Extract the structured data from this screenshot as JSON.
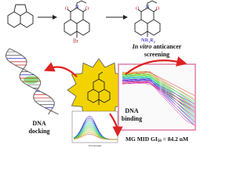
{
  "labels": {
    "in_vitro": "In vitro",
    "anticancer": "anticancer",
    "screening": "screening",
    "dna_docking_1": "DNA",
    "dna_docking_2": "docking",
    "dna_binding_1": "DNA",
    "dna_binding_2": "binding",
    "gi50_prefix": "MG MID GI",
    "gi50_sub": "50",
    "gi50_suffix": " = 84.2 nM",
    "br": "Br",
    "nr": "NR",
    "nr_sub1": "1",
    "nr_sub2": "R",
    "nr_sub3": "2",
    "spectra_x": "Wavelength"
  }
}
